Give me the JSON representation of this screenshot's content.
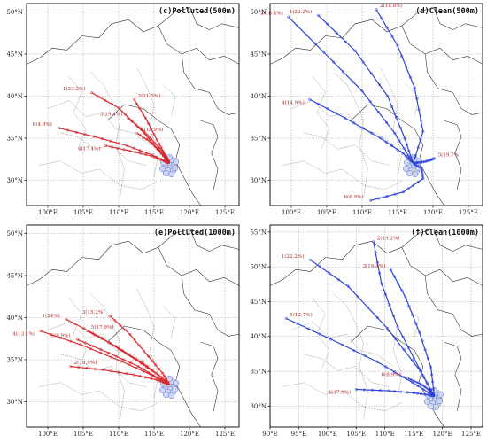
{
  "colors": {
    "polluted": "#d8262b",
    "clean": "#2a3fd8",
    "label": "#b0282a",
    "border": "#222222",
    "cluster": "#c7d0f0"
  },
  "panels": [
    {
      "key": "a",
      "title": "(c)Polluted(500m)",
      "type": "polluted",
      "lon_range": [
        97,
        127
      ],
      "lat_range": [
        27,
        51
      ],
      "lon_ticks": [
        "100°E",
        "105°E",
        "110°E",
        "115°E",
        "120°E",
        "125°E"
      ],
      "lat_ticks": [
        "30°N",
        "35°N",
        "40°N",
        "45°N",
        "50°N"
      ],
      "lon_tick_values": [
        100,
        105,
        110,
        115,
        120,
        125
      ],
      "lat_tick_values": [
        30,
        35,
        40,
        45,
        50
      ],
      "origin": [
        117.2,
        32.0
      ],
      "trajectories": [
        {
          "label": "1(23.2%)",
          "points": [
            [
              106.2,
              40.4
            ],
            [
              110.0,
              38.6
            ],
            [
              113.6,
              35.6
            ],
            [
              116.0,
              33.2
            ],
            [
              117.2,
              32.0
            ]
          ]
        },
        {
          "label": "2(21.5%)",
          "points": [
            [
              112.2,
              39.6
            ],
            [
              113.8,
              37.4
            ],
            [
              115.4,
              34.8
            ],
            [
              116.6,
              33.0
            ],
            [
              117.2,
              32.0
            ]
          ]
        },
        {
          "label": "3(19.4%)",
          "points": [
            [
              111.3,
              37.4
            ],
            [
              113.6,
              35.8
            ],
            [
              115.6,
              34.0
            ],
            [
              116.7,
              32.8
            ],
            [
              117.2,
              32.0
            ]
          ]
        },
        {
          "label": "4(17.4%)",
          "points": [
            [
              108.2,
              34.1
            ],
            [
              111.6,
              33.5
            ],
            [
              114.6,
              32.9
            ],
            [
              116.4,
              32.3
            ],
            [
              117.2,
              32.0
            ]
          ]
        },
        {
          "label": "5(15.9%)",
          "points": [
            [
              112.6,
              35.6
            ],
            [
              114.4,
              34.6
            ],
            [
              115.9,
              33.4
            ],
            [
              116.8,
              32.5
            ],
            [
              117.2,
              32.0
            ]
          ]
        },
        {
          "label": "6(4.9%)",
          "points": [
            [
              101.6,
              36.2
            ],
            [
              106.5,
              35.2
            ],
            [
              111.2,
              34.1
            ],
            [
              114.8,
              33.0
            ],
            [
              117.2,
              32.0
            ]
          ]
        }
      ]
    },
    {
      "key": "b",
      "title": "(d)Clean(500m)",
      "type": "clean",
      "lon_range": [
        97,
        127
      ],
      "lat_range": [
        27,
        51
      ],
      "lon_ticks": [
        "100°E",
        "105°E",
        "110°E",
        "115°E",
        "120°E",
        "125°E"
      ],
      "lat_ticks": [
        "30°N",
        "35°N",
        "40°N",
        "45°N",
        "50°N"
      ],
      "lon_tick_values": [
        100,
        105,
        110,
        115,
        120,
        125
      ],
      "lat_tick_values": [
        30,
        35,
        40,
        45,
        50
      ],
      "origin": [
        117.2,
        32.0
      ],
      "trajectories": [
        {
          "label": "1(22.2%)",
          "points": [
            [
              103.8,
              49.6
            ],
            [
              109.0,
              45.4
            ],
            [
              113.6,
              40.0
            ],
            [
              116.0,
              35.0
            ],
            [
              117.2,
              32.0
            ]
          ]
        },
        {
          "label": "2(18.8%)",
          "points": [
            [
              112.0,
              50.3
            ],
            [
              115.0,
              46.0
            ],
            [
              117.4,
              41.0
            ],
            [
              118.6,
              35.8
            ],
            [
              117.2,
              32.0
            ]
          ]
        },
        {
          "label": "3(18.4%)",
          "points": [
            [
              99.6,
              49.4
            ],
            [
              104.6,
              45.2
            ],
            [
              110.0,
              40.6
            ],
            [
              114.6,
              35.6
            ],
            [
              117.2,
              32.0
            ]
          ]
        },
        {
          "label": "4(14.9%)",
          "points": [
            [
              102.6,
              39.6
            ],
            [
              107.6,
              37.4
            ],
            [
              112.6,
              35.0
            ],
            [
              115.8,
              33.2
            ],
            [
              117.2,
              32.0
            ]
          ]
        },
        {
          "label": "5(19.7%)",
          "points": [
            [
              120.2,
              32.6
            ],
            [
              119.6,
              32.4
            ],
            [
              118.8,
              32.2
            ],
            [
              117.8,
              32.1
            ],
            [
              117.2,
              32.0
            ]
          ]
        },
        {
          "label": "6(6.9%)",
          "points": [
            [
              111.2,
              27.6
            ],
            [
              115.8,
              28.6
            ],
            [
              118.6,
              30.2
            ],
            [
              118.4,
              31.4
            ],
            [
              117.2,
              32.0
            ]
          ]
        }
      ]
    },
    {
      "key": "c",
      "title": "(e)Polluted(1000m)",
      "type": "polluted",
      "lon_range": [
        97,
        127
      ],
      "lat_range": [
        27,
        51
      ],
      "lon_ticks": [
        "100°E",
        "105°E",
        "110°E",
        "115°E",
        "120°E",
        "125°E"
      ],
      "lat_ticks": [
        "30°N",
        "35°N",
        "40°N",
        "45°N",
        "50°N"
      ],
      "lon_tick_values": [
        100,
        105,
        110,
        115,
        120,
        125
      ],
      "lat_tick_values": [
        30,
        35,
        40,
        45,
        50
      ],
      "origin": [
        117.2,
        32.0
      ],
      "trajectories": [
        {
          "label": "1(24%)",
          "points": [
            [
              102.6,
              39.8
            ],
            [
              107.6,
              37.6
            ],
            [
              112.4,
              35.0
            ],
            [
              115.6,
              33.2
            ],
            [
              117.2,
              32.0
            ]
          ]
        },
        {
          "label": "2(19.9%)",
          "points": [
            [
              103.2,
              34.2
            ],
            [
              107.8,
              33.8
            ],
            [
              112.2,
              33.2
            ],
            [
              115.4,
              32.6
            ],
            [
              117.2,
              32.0
            ]
          ]
        },
        {
          "label": "3(15.2%)",
          "points": [
            [
              108.8,
              40.2
            ],
            [
              111.6,
              38.0
            ],
            [
              114.2,
              35.4
            ],
            [
              116.2,
              33.4
            ],
            [
              117.2,
              32.0
            ]
          ]
        },
        {
          "label": "4(13.1%)",
          "points": [
            [
              99.0,
              38.4
            ],
            [
              104.6,
              36.8
            ],
            [
              110.4,
              34.8
            ],
            [
              114.6,
              33.2
            ],
            [
              117.2,
              32.0
            ]
          ]
        },
        {
          "label": "5(17.9%)",
          "points": [
            [
              105.6,
              38.4
            ],
            [
              109.6,
              36.6
            ],
            [
              113.4,
              34.6
            ],
            [
              115.9,
              33.0
            ],
            [
              117.2,
              32.0
            ]
          ]
        },
        {
          "label": "6(9.9%)",
          "points": [
            [
              104.2,
              37.4
            ],
            [
              108.6,
              35.8
            ],
            [
              112.8,
              34.2
            ],
            [
              115.6,
              32.8
            ],
            [
              117.2,
              32.0
            ]
          ]
        }
      ]
    },
    {
      "key": "d",
      "title": "(f)Clean(1000m)",
      "type": "clean",
      "lon_range": [
        90,
        127
      ],
      "lat_range": [
        27,
        56
      ],
      "lon_ticks": [
        "90°E",
        "95°E",
        "100°E",
        "105°E",
        "110°E",
        "115°E",
        "120°E",
        "125°E"
      ],
      "lat_ticks": [
        "30°N",
        "35°N",
        "40°N",
        "45°N",
        "50°N",
        "55°N"
      ],
      "lon_tick_values": [
        90,
        95,
        100,
        105,
        110,
        115,
        120,
        125
      ],
      "lat_tick_values": [
        30,
        35,
        40,
        45,
        50,
        55
      ],
      "origin": [
        118.6,
        31.4
      ],
      "trajectories": [
        {
          "label": "1(22.2%)",
          "points": [
            [
              97.0,
              51.0
            ],
            [
              103.6,
              47.2
            ],
            [
              110.4,
              41.2
            ],
            [
              116.2,
              35.0
            ],
            [
              118.6,
              31.4
            ]
          ]
        },
        {
          "label": "2(19.2%)",
          "points": [
            [
              108.0,
              53.6
            ],
            [
              109.4,
              47.6
            ],
            [
              112.2,
              41.4
            ],
            [
              116.0,
              35.4
            ],
            [
              118.6,
              31.4
            ]
          ]
        },
        {
          "label": "3(19.4%)",
          "points": [
            [
              111.0,
              49.6
            ],
            [
              113.6,
              45.6
            ],
            [
              116.0,
              40.6
            ],
            [
              118.0,
              35.6
            ],
            [
              118.6,
              31.4
            ]
          ]
        },
        {
          "label": "4(17.9%)",
          "points": [
            [
              105.0,
              32.4
            ],
            [
              110.6,
              32.2
            ],
            [
              115.0,
              31.9
            ],
            [
              117.6,
              31.6
            ],
            [
              118.6,
              31.4
            ]
          ]
        },
        {
          "label": "5(12.7%)",
          "points": [
            [
              92.8,
              42.6
            ],
            [
              100.6,
              39.6
            ],
            [
              108.6,
              36.4
            ],
            [
              114.8,
              33.4
            ],
            [
              118.6,
              31.4
            ]
          ]
        },
        {
          "label": "6(8.9%)",
          "points": [
            [
              114.0,
              34.0
            ],
            [
              116.2,
              33.2
            ],
            [
              117.6,
              32.4
            ],
            [
              118.2,
              31.8
            ],
            [
              118.6,
              31.4
            ]
          ]
        }
      ]
    }
  ]
}
